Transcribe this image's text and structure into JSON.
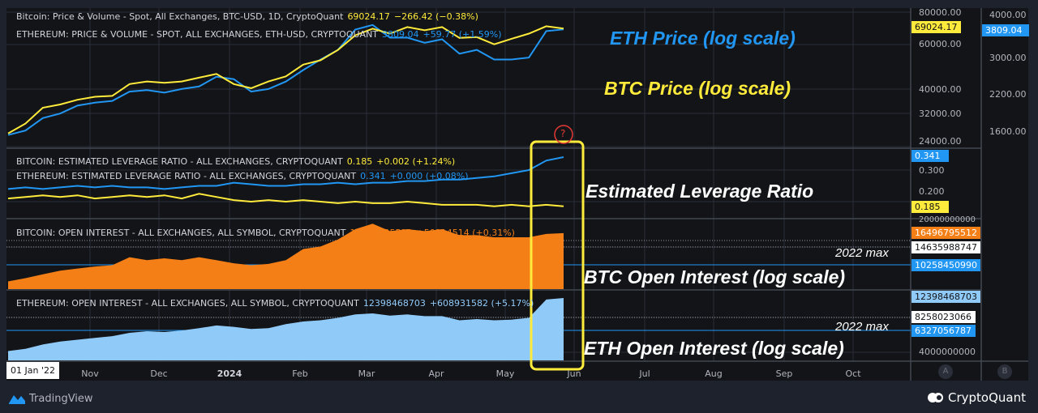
{
  "legends": {
    "btc_price": {
      "title": "Bitcoin: Price & Volume - Spot, All Exchanges, BTC-USD, 1D, CryptoQuant",
      "value": "69024.17",
      "change": "−266.42 (−0.38%)"
    },
    "eth_price": {
      "title": "ETHEREUM: PRICE & VOLUME - SPOT, ALL EXCHANGES, ETH-USD, CRYPTOQUANT",
      "value": "3809.04",
      "change": "+59.77 (+1.59%)"
    },
    "btc_lev": {
      "title": "BITCOIN: ESTIMATED LEVERAGE RATIO - ALL EXCHANGES, CRYPTOQUANT",
      "value": "0.185",
      "change": "+0.002 (+1.24%)"
    },
    "eth_lev": {
      "title": "ETHEREUM: ESTIMATED LEVERAGE RATIO - ALL EXCHANGES, CRYPTOQUANT",
      "value": "0.341",
      "change": "+0.000 (+0.08%)"
    },
    "btc_oi": {
      "title": "BITCOIN: OPEN INTEREST - ALL EXCHANGES, ALL SYMBOL, CRYPTOQUANT",
      "value": "16496795512",
      "change": "+50314514 (+0.31%)"
    },
    "eth_oi": {
      "title": "ETHEREUM: OPEN INTEREST - ALL EXCHANGES, ALL SYMBOL, CRYPTOQUANT",
      "value": "12398468703",
      "change": "+608931582 (+5.17%)"
    }
  },
  "axes": {
    "btc_price_ticks": [
      "80000.00",
      "60000.00",
      "40000.00",
      "32000.00",
      "24000.00"
    ],
    "eth_price_ticks": [
      "4000.00",
      "3000.00",
      "2200.00",
      "1600.00"
    ],
    "lev_ticks": [
      "0.300",
      "0.200"
    ],
    "btc_oi_ticks": [
      "20000000000"
    ],
    "eth_oi_ticks": [
      "4000000000"
    ],
    "tags": {
      "btc_price": "69024.17",
      "eth_price": "3809.04",
      "eth_lev": "0.341",
      "btc_lev": "0.185",
      "btc_oi": "16496795512",
      "btc_oi_max": "14635988747",
      "btc_oi_line": "10258450990",
      "eth_oi": "12398468703",
      "eth_oi_max": "8258023066",
      "eth_oi_line": "6327056787"
    },
    "months": [
      "Nov",
      "Dec",
      "2024",
      "Feb",
      "Mar",
      "Apr",
      "May",
      "Jun",
      "Jul",
      "Aug",
      "Sep",
      "Oct"
    ],
    "date_badge": "01 Jan '22",
    "scale_buttons": [
      "A",
      "B"
    ]
  },
  "annotations": {
    "eth_price": "ETH Price (log scale)",
    "btc_price": "BTC Price (log scale)",
    "leverage": "Estimated Leverage Ratio",
    "btc_oi": "BTC Open Interest (log scale)",
    "eth_oi": "ETH Open Interest (log scale)",
    "max_label": "2022 max",
    "question": "?"
  },
  "branding": {
    "left": "TradingView",
    "right": "CryptoQuant"
  },
  "colors": {
    "btc": "#ffeb3b",
    "eth": "#2196f3",
    "btc_oi": "#f57f17",
    "eth_oi": "#90caf9",
    "bg": "#131417",
    "frame": "#1e222d"
  },
  "chart_data": {
    "type": "line",
    "x": [
      "2023-10-16",
      "2023-10-23",
      "2023-10-30",
      "2023-11-06",
      "2023-11-13",
      "2023-11-20",
      "2023-11-27",
      "2023-12-04",
      "2023-12-11",
      "2023-12-18",
      "2023-12-25",
      "2024-01-01",
      "2024-01-08",
      "2024-01-15",
      "2024-01-22",
      "2024-01-29",
      "2024-02-05",
      "2024-02-12",
      "2024-02-19",
      "2024-02-26",
      "2024-03-04",
      "2024-03-11",
      "2024-03-18",
      "2024-03-25",
      "2024-04-01",
      "2024-04-08",
      "2024-04-15",
      "2024-04-22",
      "2024-04-29",
      "2024-05-06",
      "2024-05-13",
      "2024-05-20",
      "2024-05-27"
    ],
    "series": [
      {
        "name": "BTC Price",
        "values": [
          27000,
          29500,
          34000,
          35000,
          36500,
          37500,
          37800,
          42000,
          43000,
          42500,
          43000,
          44500,
          46000,
          42000,
          40500,
          43000,
          45000,
          50000,
          52000,
          57000,
          65000,
          69000,
          66000,
          70000,
          68000,
          70000,
          63500,
          64000,
          60000,
          63000,
          66000,
          70500,
          69024
        ]
      },
      {
        "name": "ETH Price",
        "values": [
          1560,
          1620,
          1800,
          1870,
          2000,
          2050,
          2080,
          2250,
          2280,
          2230,
          2300,
          2350,
          2550,
          2500,
          2250,
          2300,
          2450,
          2700,
          2950,
          3200,
          3800,
          3950,
          3550,
          3550,
          3400,
          3500,
          3100,
          3200,
          2950,
          2950,
          3000,
          3750,
          3809
        ]
      },
      {
        "name": "BTC Leverage",
        "values": [
          0.21,
          0.215,
          0.22,
          0.215,
          0.22,
          0.21,
          0.215,
          0.22,
          0.215,
          0.22,
          0.21,
          0.225,
          0.215,
          0.205,
          0.2,
          0.205,
          0.2,
          0.205,
          0.2,
          0.195,
          0.2,
          0.195,
          0.195,
          0.2,
          0.195,
          0.19,
          0.19,
          0.19,
          0.185,
          0.19,
          0.185,
          0.19,
          0.185
        ]
      },
      {
        "name": "ETH Leverage",
        "values": [
          0.24,
          0.245,
          0.24,
          0.245,
          0.25,
          0.245,
          0.25,
          0.245,
          0.245,
          0.24,
          0.245,
          0.25,
          0.25,
          0.26,
          0.255,
          0.25,
          0.25,
          0.255,
          0.255,
          0.26,
          0.255,
          0.26,
          0.26,
          0.265,
          0.265,
          0.27,
          0.27,
          0.275,
          0.28,
          0.29,
          0.3,
          0.33,
          0.341
        ]
      },
      {
        "name": "BTC Open Interest",
        "values": [
          8000000000.0,
          8400000000.0,
          8900000000.0,
          9400000000.0,
          9700000000.0,
          10000000000.0,
          10200000000.0,
          11500000000.0,
          11000000000.0,
          11300000000.0,
          11000000000.0,
          11500000000.0,
          11000000000.0,
          10500000000.0,
          10200000000.0,
          10400000000.0,
          11000000000.0,
          13000000000.0,
          13500000000.0,
          15000000000.0,
          17500000000.0,
          19000000000.0,
          17000000000.0,
          17500000000.0,
          17000000000.0,
          17500000000.0,
          16000000000.0,
          16000000000.0,
          15500000000.0,
          15500000000.0,
          15500000000.0,
          16300000000.0,
          16500000000.0
        ]
      },
      {
        "name": "ETH Open Interest",
        "values": [
          4100000000.0,
          4300000000.0,
          4700000000.0,
          5000000000.0,
          5200000000.0,
          5400000000.0,
          5600000000.0,
          6000000000.0,
          6200000000.0,
          6100000000.0,
          6300000000.0,
          6600000000.0,
          7000000000.0,
          6800000000.0,
          6500000000.0,
          6600000000.0,
          7200000000.0,
          7600000000.0,
          7800000000.0,
          8200000000.0,
          8800000000.0,
          9000000000.0,
          8600000000.0,
          8800000000.0,
          8500000000.0,
          8500000000.0,
          7800000000.0,
          8000000000.0,
          7800000000.0,
          7900000000.0,
          8200000000.0,
          12000000000.0,
          12400000000.0
        ]
      }
    ]
  }
}
